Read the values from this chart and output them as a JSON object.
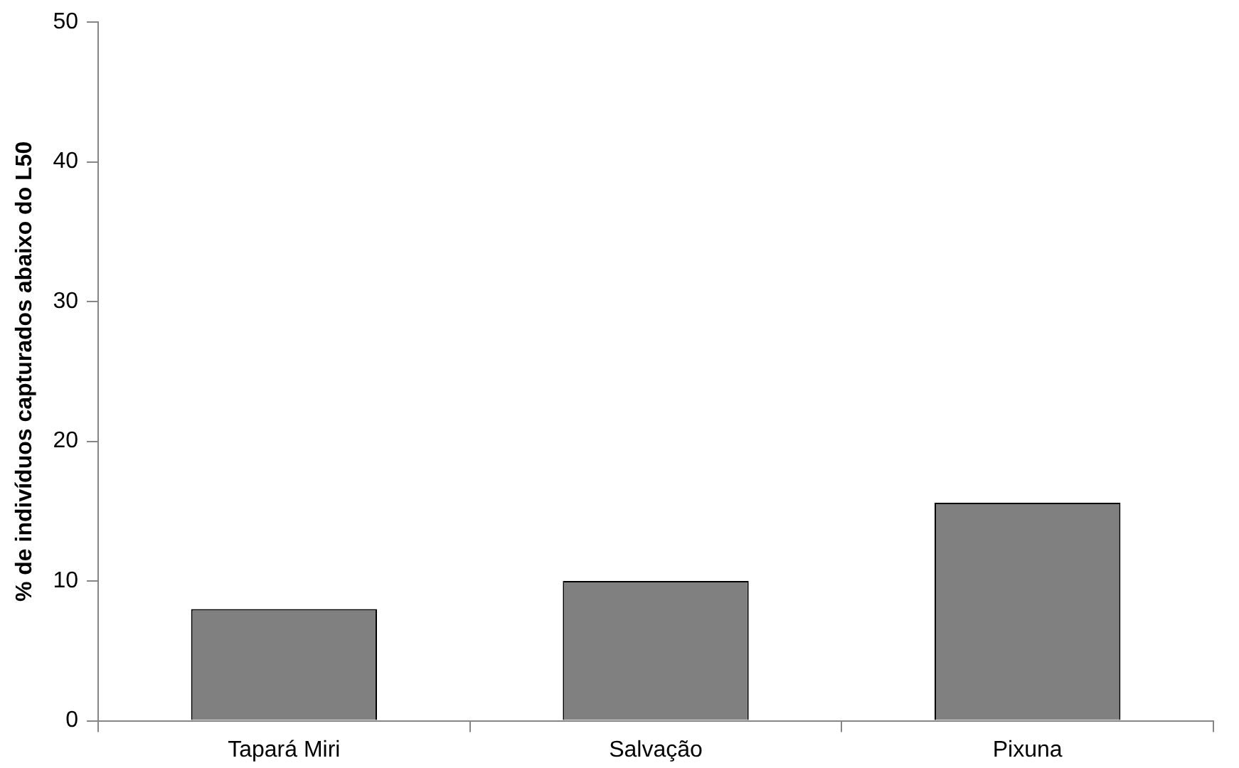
{
  "chart_data": {
    "type": "bar",
    "ylabel": "% de indivíduos capturados abaixo do L50",
    "categories": [
      "Tapará Miri",
      "Salvação",
      "Pixuna"
    ],
    "values": [
      8,
      10,
      15.6
    ],
    "color": "#808080",
    "ylim": [
      0,
      50
    ],
    "yticks": [
      0,
      10,
      20,
      30,
      40,
      50
    ]
  }
}
